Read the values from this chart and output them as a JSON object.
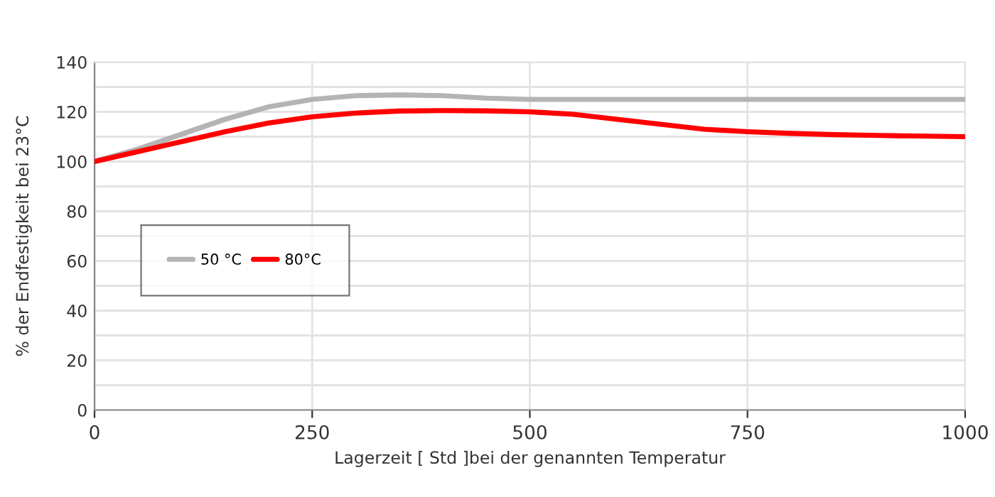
{
  "chart_data": {
    "type": "line",
    "xlabel": "Lagerzeit [ Std ]bei der genannten Temperatur",
    "ylabel": "% der Endfestigkeit bei 23°C",
    "xlim": [
      0,
      1000
    ],
    "xticks": [
      0,
      250,
      500,
      750,
      1000
    ],
    "ylim": [
      0,
      140
    ],
    "yticks": [
      0,
      {
        "value": 10,
        "label": null
      },
      20,
      {
        "value": 30,
        "label": null
      },
      40,
      {
        "value": 50,
        "label": null
      },
      60,
      {
        "value": 70,
        "label": null
      },
      80,
      {
        "value": 90,
        "label": null
      },
      100,
      {
        "value": 110,
        "label": null
      },
      120,
      {
        "value": 130,
        "label": null
      },
      140
    ],
    "grid": true,
    "legend": "left",
    "marker": "none",
    "line_style": "solid",
    "series": [
      {
        "name": "50 °C",
        "color": "#b4b4b4",
        "x": [
          0,
          50,
          100,
          150,
          200,
          250,
          300,
          350,
          400,
          450,
          500,
          600,
          750,
          1000
        ],
        "values": [
          100,
          105,
          111,
          117,
          122,
          125,
          126.5,
          126.8,
          126.5,
          125.5,
          125,
          125,
          125,
          125
        ]
      },
      {
        "name": "80°C",
        "color": "#ff0000",
        "x": [
          0,
          50,
          100,
          150,
          200,
          250,
          300,
          350,
          400,
          450,
          500,
          550,
          600,
          650,
          700,
          750,
          800,
          850,
          900,
          1000
        ],
        "values": [
          100,
          104,
          108,
          112,
          115.5,
          118,
          119.5,
          120.3,
          120.5,
          120.4,
          120,
          119,
          117,
          115,
          113,
          112,
          111.3,
          110.8,
          110.5,
          110
        ]
      }
    ]
  }
}
